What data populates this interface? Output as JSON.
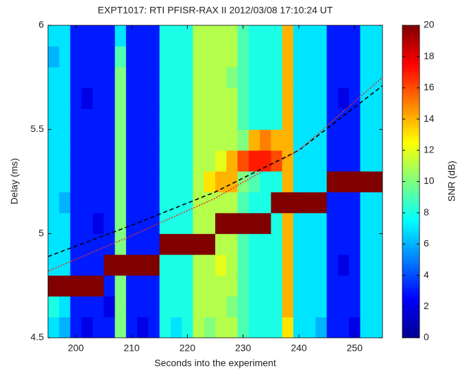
{
  "chart_data": {
    "type": "heatmap",
    "title": "EXPT1017: RTI PFISR-RAX II 2012/03/08 17:10:24 UT",
    "x_label": "Seconds into the experiment",
    "y_label": "Delay (ms)",
    "colorbar_label": "SNR (dB)",
    "colormap": "jet",
    "x": [
      196,
      198,
      200,
      202,
      204,
      206,
      208,
      210,
      212,
      214,
      216,
      218,
      220,
      222,
      224,
      226,
      228,
      230,
      232,
      234,
      236,
      238,
      240,
      242,
      244,
      246,
      248,
      250,
      252,
      254
    ],
    "y": [
      4.55,
      4.65,
      4.75,
      4.85,
      4.95,
      5.05,
      5.15,
      5.25,
      5.35,
      5.45,
      5.55,
      5.65,
      5.75,
      5.85,
      5.95
    ],
    "z": [
      [
        7,
        6,
        3,
        2,
        3,
        3,
        10,
        3,
        2,
        3,
        8,
        7,
        8,
        11,
        10,
        11,
        11,
        9,
        8,
        8,
        8,
        13,
        7,
        7,
        6,
        3,
        3,
        2,
        7,
        7
      ],
      [
        8,
        7,
        3,
        3,
        3,
        2,
        10,
        3,
        3,
        3,
        8,
        8,
        8,
        11,
        11,
        11,
        10,
        9,
        8,
        8,
        8,
        14,
        7,
        7,
        7,
        3,
        3,
        3,
        7,
        7
      ],
      [
        20,
        20,
        20,
        20,
        20,
        3,
        10,
        3,
        3,
        3,
        8,
        8,
        8,
        11,
        11,
        11,
        11,
        9,
        8,
        8,
        8,
        14,
        7,
        7,
        7,
        3,
        3,
        3,
        7,
        7
      ],
      [
        7,
        7,
        3,
        3,
        3,
        20,
        20,
        20,
        20,
        20,
        8,
        8,
        8,
        11,
        11,
        12,
        11,
        9,
        8,
        8,
        8,
        14,
        7,
        7,
        7,
        3,
        2,
        3,
        7,
        7
      ],
      [
        7,
        7,
        3,
        3,
        3,
        3,
        10,
        3,
        3,
        3,
        20,
        20,
        20,
        20,
        20,
        11,
        11,
        9,
        8,
        8,
        8,
        14,
        7,
        7,
        7,
        3,
        3,
        3,
        7,
        7
      ],
      [
        7,
        7,
        3,
        3,
        2,
        3,
        10,
        3,
        3,
        3,
        8,
        8,
        8,
        11,
        11,
        20,
        20,
        20,
        20,
        20,
        8,
        14,
        7,
        7,
        7,
        3,
        3,
        3,
        7,
        7
      ],
      [
        7,
        6,
        3,
        3,
        3,
        3,
        10,
        3,
        3,
        3,
        8,
        8,
        8,
        11,
        11,
        11,
        11,
        9,
        8,
        8,
        20,
        20,
        20,
        20,
        20,
        3,
        3,
        3,
        7,
        7
      ],
      [
        7,
        7,
        3,
        3,
        3,
        3,
        10,
        3,
        3,
        3,
        8,
        8,
        8,
        11,
        13,
        14,
        14,
        10,
        9,
        8,
        8,
        14,
        7,
        7,
        7,
        20,
        20,
        20,
        20,
        20
      ],
      [
        7,
        7,
        3,
        3,
        3,
        3,
        10,
        3,
        3,
        3,
        8,
        8,
        8,
        11,
        11,
        12,
        14,
        16,
        17,
        17,
        16,
        14,
        7,
        7,
        7,
        3,
        3,
        3,
        7,
        7
      ],
      [
        7,
        7,
        3,
        3,
        3,
        3,
        10,
        3,
        3,
        3,
        8,
        8,
        8,
        11,
        11,
        11,
        11,
        10,
        14,
        15,
        14,
        14,
        7,
        7,
        7,
        3,
        3,
        3,
        7,
        7
      ],
      [
        7,
        7,
        3,
        3,
        3,
        3,
        10,
        3,
        3,
        3,
        8,
        8,
        8,
        11,
        11,
        11,
        11,
        9,
        8,
        8,
        8,
        14,
        7,
        7,
        7,
        3,
        3,
        3,
        7,
        7
      ],
      [
        7,
        7,
        3,
        2,
        3,
        3,
        10,
        3,
        3,
        3,
        8,
        8,
        8,
        11,
        11,
        11,
        11,
        9,
        8,
        8,
        8,
        14,
        7,
        7,
        7,
        3,
        2,
        3,
        7,
        7
      ],
      [
        7,
        7,
        3,
        3,
        3,
        3,
        10,
        3,
        3,
        3,
        8,
        8,
        8,
        11,
        11,
        11,
        10,
        9,
        8,
        8,
        8,
        14,
        7,
        7,
        7,
        3,
        3,
        3,
        7,
        7
      ],
      [
        6,
        7,
        3,
        3,
        3,
        3,
        9,
        3,
        3,
        3,
        8,
        8,
        8,
        11,
        11,
        11,
        11,
        9,
        8,
        8,
        8,
        14,
        7,
        7,
        7,
        3,
        3,
        3,
        7,
        7
      ],
      [
        7,
        7,
        3,
        3,
        3,
        3,
        7,
        3,
        3,
        3,
        8,
        8,
        8,
        11,
        11,
        11,
        11,
        9,
        8,
        8,
        8,
        14,
        7,
        7,
        7,
        3,
        3,
        3,
        7,
        7
      ]
    ],
    "lines": [
      {
        "color": "#000000",
        "dash": "6,4",
        "x": [
          195,
          210,
          225,
          240,
          255
        ],
        "values": [
          4.89,
          5.04,
          5.2,
          5.4,
          5.71
        ]
      },
      {
        "color": "#e03030",
        "dash": "2,2",
        "x": [
          195,
          210,
          225,
          240,
          255
        ],
        "values": [
          4.82,
          4.99,
          5.17,
          5.4,
          5.75
        ]
      }
    ],
    "xlim": [
      195,
      255
    ],
    "xticks": [
      200,
      210,
      220,
      230,
      240,
      250
    ],
    "ylim": [
      4.5,
      6
    ],
    "yticks": [
      4.5,
      5,
      5.5,
      6
    ],
    "zlim": [
      0,
      20
    ],
    "zticks": [
      0,
      2,
      4,
      6,
      8,
      10,
      12,
      14,
      16,
      18,
      20
    ]
  }
}
